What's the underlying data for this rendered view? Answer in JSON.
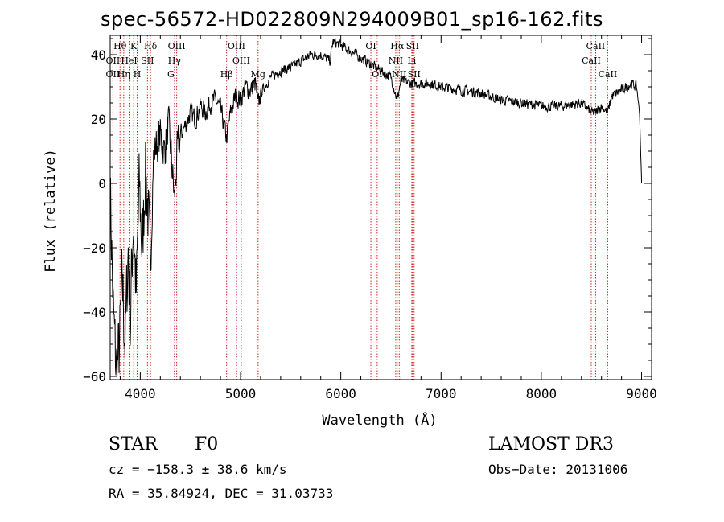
{
  "chart_data": {
    "type": "line",
    "title": "spec-56572-HD022809N294009B01_sp16-162.fits",
    "xlabel": "Wavelength (Å)",
    "ylabel": "Flux (relative)",
    "xlim": [
      3700,
      9100
    ],
    "ylim": [
      -61,
      46
    ],
    "xticks": [
      4000,
      5000,
      6000,
      7000,
      8000,
      9000
    ],
    "yticks": [
      -60,
      -40,
      -20,
      0,
      20,
      40
    ],
    "xtick_labels": [
      "4000",
      "5000",
      "6000",
      "7000",
      "8000",
      "9000"
    ],
    "ytick_labels": [
      "−60",
      "−40",
      "−20",
      "0",
      "20",
      "40"
    ],
    "anchors": [
      [
        3700,
        0
      ],
      [
        3730,
        -40
      ],
      [
        3760,
        -58
      ],
      [
        3790,
        -52
      ],
      [
        3820,
        -30
      ],
      [
        3850,
        -50
      ],
      [
        3880,
        -20
      ],
      [
        3900,
        -45
      ],
      [
        3930,
        -10
      ],
      [
        3960,
        -35
      ],
      [
        3990,
        0
      ],
      [
        4020,
        -22
      ],
      [
        4050,
        5
      ],
      [
        4080,
        -10
      ],
      [
        4101,
        -30
      ],
      [
        4130,
        8
      ],
      [
        4160,
        12
      ],
      [
        4200,
        15
      ],
      [
        4240,
        10
      ],
      [
        4280,
        18
      ],
      [
        4300,
        12
      ],
      [
        4340,
        -5
      ],
      [
        4370,
        10
      ],
      [
        4400,
        15
      ],
      [
        4450,
        18
      ],
      [
        4500,
        22
      ],
      [
        4550,
        20
      ],
      [
        4600,
        24
      ],
      [
        4650,
        22
      ],
      [
        4700,
        25
      ],
      [
        4750,
        26
      ],
      [
        4800,
        23
      ],
      [
        4861,
        14
      ],
      [
        4900,
        22
      ],
      [
        4950,
        27
      ],
      [
        5000,
        26
      ],
      [
        5050,
        30
      ],
      [
        5100,
        29
      ],
      [
        5150,
        31
      ],
      [
        5173,
        24
      ],
      [
        5200,
        28
      ],
      [
        5300,
        33
      ],
      [
        5400,
        35
      ],
      [
        5500,
        36
      ],
      [
        5600,
        38
      ],
      [
        5700,
        40
      ],
      [
        5800,
        40
      ],
      [
        5893,
        38
      ],
      [
        5920,
        44
      ],
      [
        6000,
        43
      ],
      [
        6100,
        41
      ],
      [
        6200,
        39
      ],
      [
        6300,
        37
      ],
      [
        6400,
        35
      ],
      [
        6500,
        33
      ],
      [
        6563,
        26
      ],
      [
        6600,
        32
      ],
      [
        6700,
        31
      ],
      [
        6800,
        31
      ],
      [
        6900,
        31
      ],
      [
        7000,
        30
      ],
      [
        7200,
        29
      ],
      [
        7400,
        28
      ],
      [
        7600,
        26
      ],
      [
        7800,
        25
      ],
      [
        8000,
        24
      ],
      [
        8200,
        24
      ],
      [
        8400,
        25
      ],
      [
        8498,
        22
      ],
      [
        8542,
        22
      ],
      [
        8600,
        24
      ],
      [
        8662,
        22
      ],
      [
        8700,
        27
      ],
      [
        8800,
        29
      ],
      [
        8900,
        31
      ],
      [
        8950,
        30
      ],
      [
        8980,
        22
      ],
      [
        8995,
        6
      ],
      [
        9000,
        1
      ]
    ],
    "noise_model": "amplitude ~12 below 4100 Å, ~6 to 4400 Å, ~3 to 5200 Å, ~1.5 beyond",
    "line_markers": [
      {
        "label": "Hθ",
        "wave": 3798,
        "tier": 0
      },
      {
        "label": "K",
        "wave": 3934,
        "tier": 0
      },
      {
        "label": "Hδ",
        "wave": 4102,
        "tier": 0
      },
      {
        "label": "OIII",
        "wave": 4363,
        "tier": 0
      },
      {
        "label": "OIII",
        "wave": 4959,
        "tier": 0
      },
      {
        "label": "OI",
        "wave": 6300,
        "tier": 0
      },
      {
        "label": "Hα",
        "wave": 6563,
        "tier": 0
      },
      {
        "label": "SII",
        "wave": 6716,
        "tier": 0
      },
      {
        "label": "CaII",
        "wave": 8542,
        "tier": 0
      },
      {
        "label": "OII",
        "wave": 3727,
        "tier": 1
      },
      {
        "label": "HeI",
        "wave": 3889,
        "tier": 1
      },
      {
        "label": "SII",
        "wave": 4072,
        "tier": 1
      },
      {
        "label": "Hγ",
        "wave": 4341,
        "tier": 1
      },
      {
        "label": "OIII",
        "wave": 5007,
        "tier": 1
      },
      {
        "label": "NII",
        "wave": 6548,
        "tier": 1
      },
      {
        "label": "Li",
        "wave": 6708,
        "tier": 1
      },
      {
        "label": "CaII",
        "wave": 8498,
        "tier": 1
      },
      {
        "label": "OII",
        "wave": 3727,
        "tier": 2
      },
      {
        "label": "Hη",
        "wave": 3835,
        "tier": 2
      },
      {
        "label": "H",
        "wave": 3969,
        "tier": 2
      },
      {
        "label": "G",
        "wave": 4305,
        "tier": 2
      },
      {
        "label": "Hβ",
        "wave": 4861,
        "tier": 2
      },
      {
        "label": "Mg",
        "wave": 5175,
        "tier": 2
      },
      {
        "label": "OI",
        "wave": 6363,
        "tier": 2
      },
      {
        "label": "NII",
        "wave": 6583,
        "tier": 2
      },
      {
        "label": "SII",
        "wave": 6731,
        "tier": 2
      },
      {
        "label": "CaII",
        "wave": 8662,
        "tier": 2
      }
    ]
  },
  "info": {
    "object_type": "STAR",
    "subclass": "F0",
    "survey": "LAMOST DR3",
    "cz_line": "cz = −158.3 ± 38.6 km/s",
    "obs_date": "Obs−Date: 20131006",
    "radec_line": "RA =  35.84924, DEC =  31.03733"
  }
}
